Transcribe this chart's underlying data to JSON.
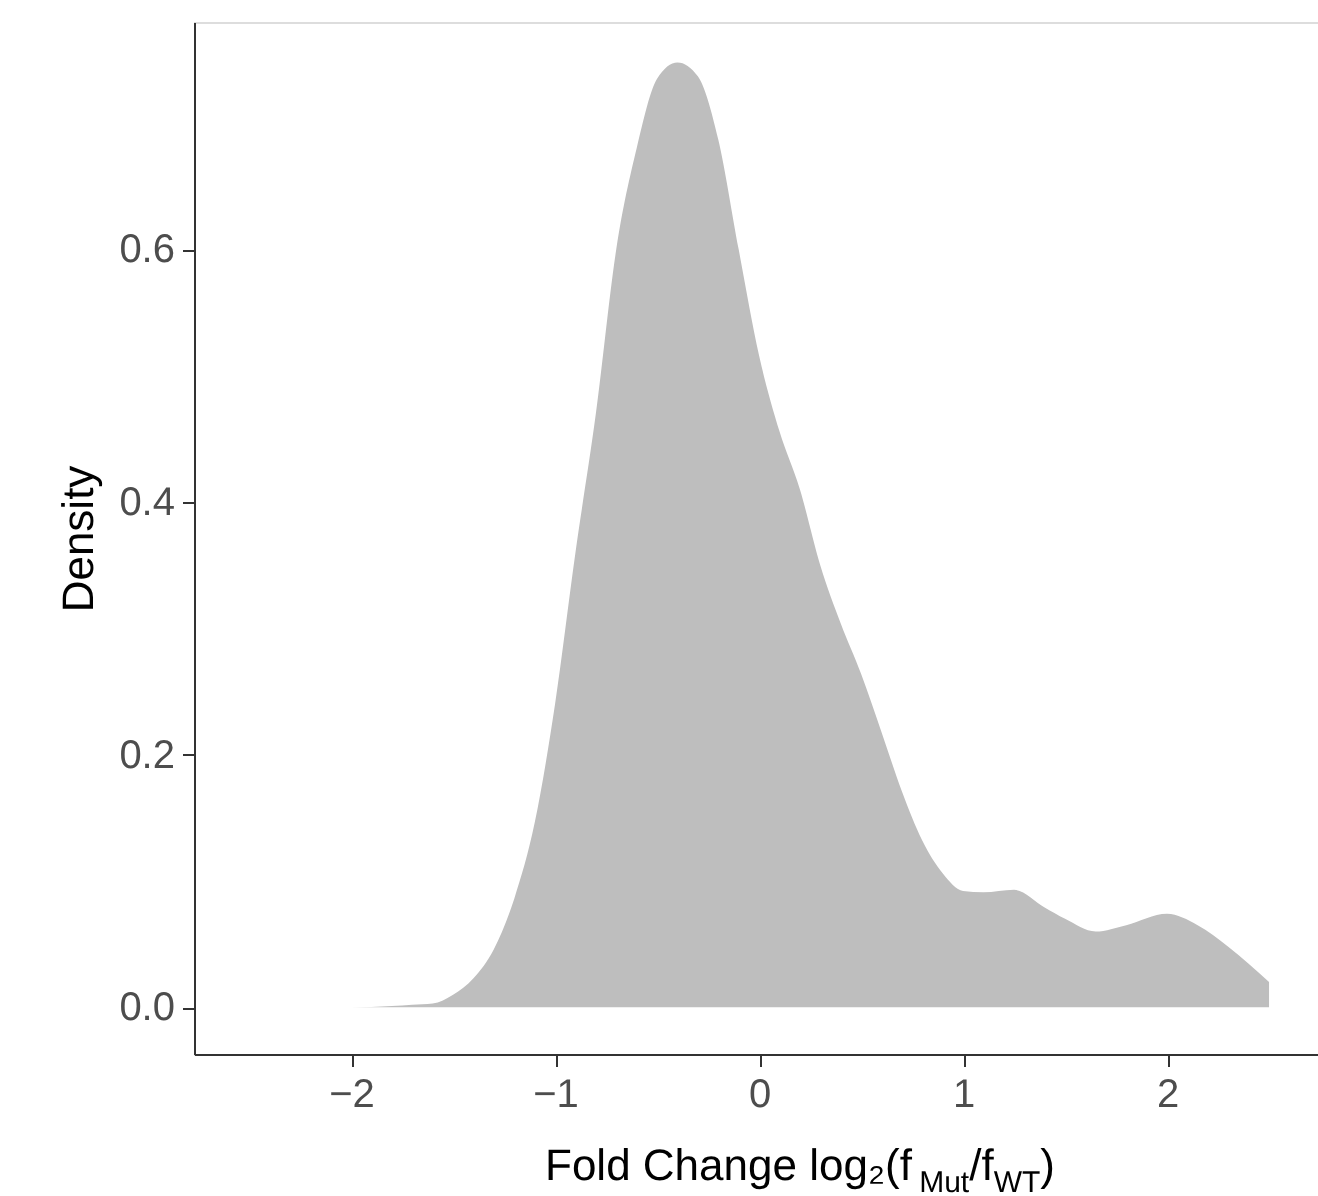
{
  "chart_data": {
    "type": "area",
    "xlabel": "Fold Change log₂(f$_{Mut}$/f$_{WT}$)",
    "ylabel": "Density",
    "x": [
      -2.5,
      -2.0,
      -1.8,
      -1.7,
      -1.6,
      -1.5,
      -1.4,
      -1.3,
      -1.2,
      -1.1,
      -1.0,
      -0.9,
      -0.8,
      -0.7,
      -0.6,
      -0.5,
      -0.4,
      -0.3,
      -0.2,
      -0.1,
      0.0,
      0.1,
      0.2,
      0.3,
      0.4,
      0.5,
      0.6,
      0.7,
      0.8,
      0.9,
      1.0,
      1.1,
      1.25,
      1.4,
      1.5,
      1.65,
      1.8,
      2.0,
      2.15,
      2.3,
      2.5
    ],
    "series": [
      {
        "color": "#bebebe",
        "values": [
          0.0,
          0.0,
          0.001,
          0.002,
          0.003,
          0.01,
          0.023,
          0.046,
          0.086,
          0.146,
          0.24,
          0.36,
          0.47,
          0.6,
          0.68,
          0.735,
          0.748,
          0.737,
          0.687,
          0.6,
          0.516,
          0.456,
          0.41,
          0.35,
          0.304,
          0.264,
          0.218,
          0.171,
          0.132,
          0.106,
          0.092,
          0.091,
          0.093,
          0.079,
          0.07,
          0.06,
          0.065,
          0.074,
          0.065,
          0.048,
          0.02
        ]
      }
    ],
    "xlim": [
      -2.77,
      2.74
    ],
    "xticks": [
      -2,
      -1,
      0,
      1,
      2
    ],
    "ylim": [
      -0.037,
      0.78
    ],
    "yticks": [
      {
        "value": 0.0,
        "label": "0.0"
      },
      0.2,
      0.4,
      0.6
    ],
    "grid": false
  }
}
